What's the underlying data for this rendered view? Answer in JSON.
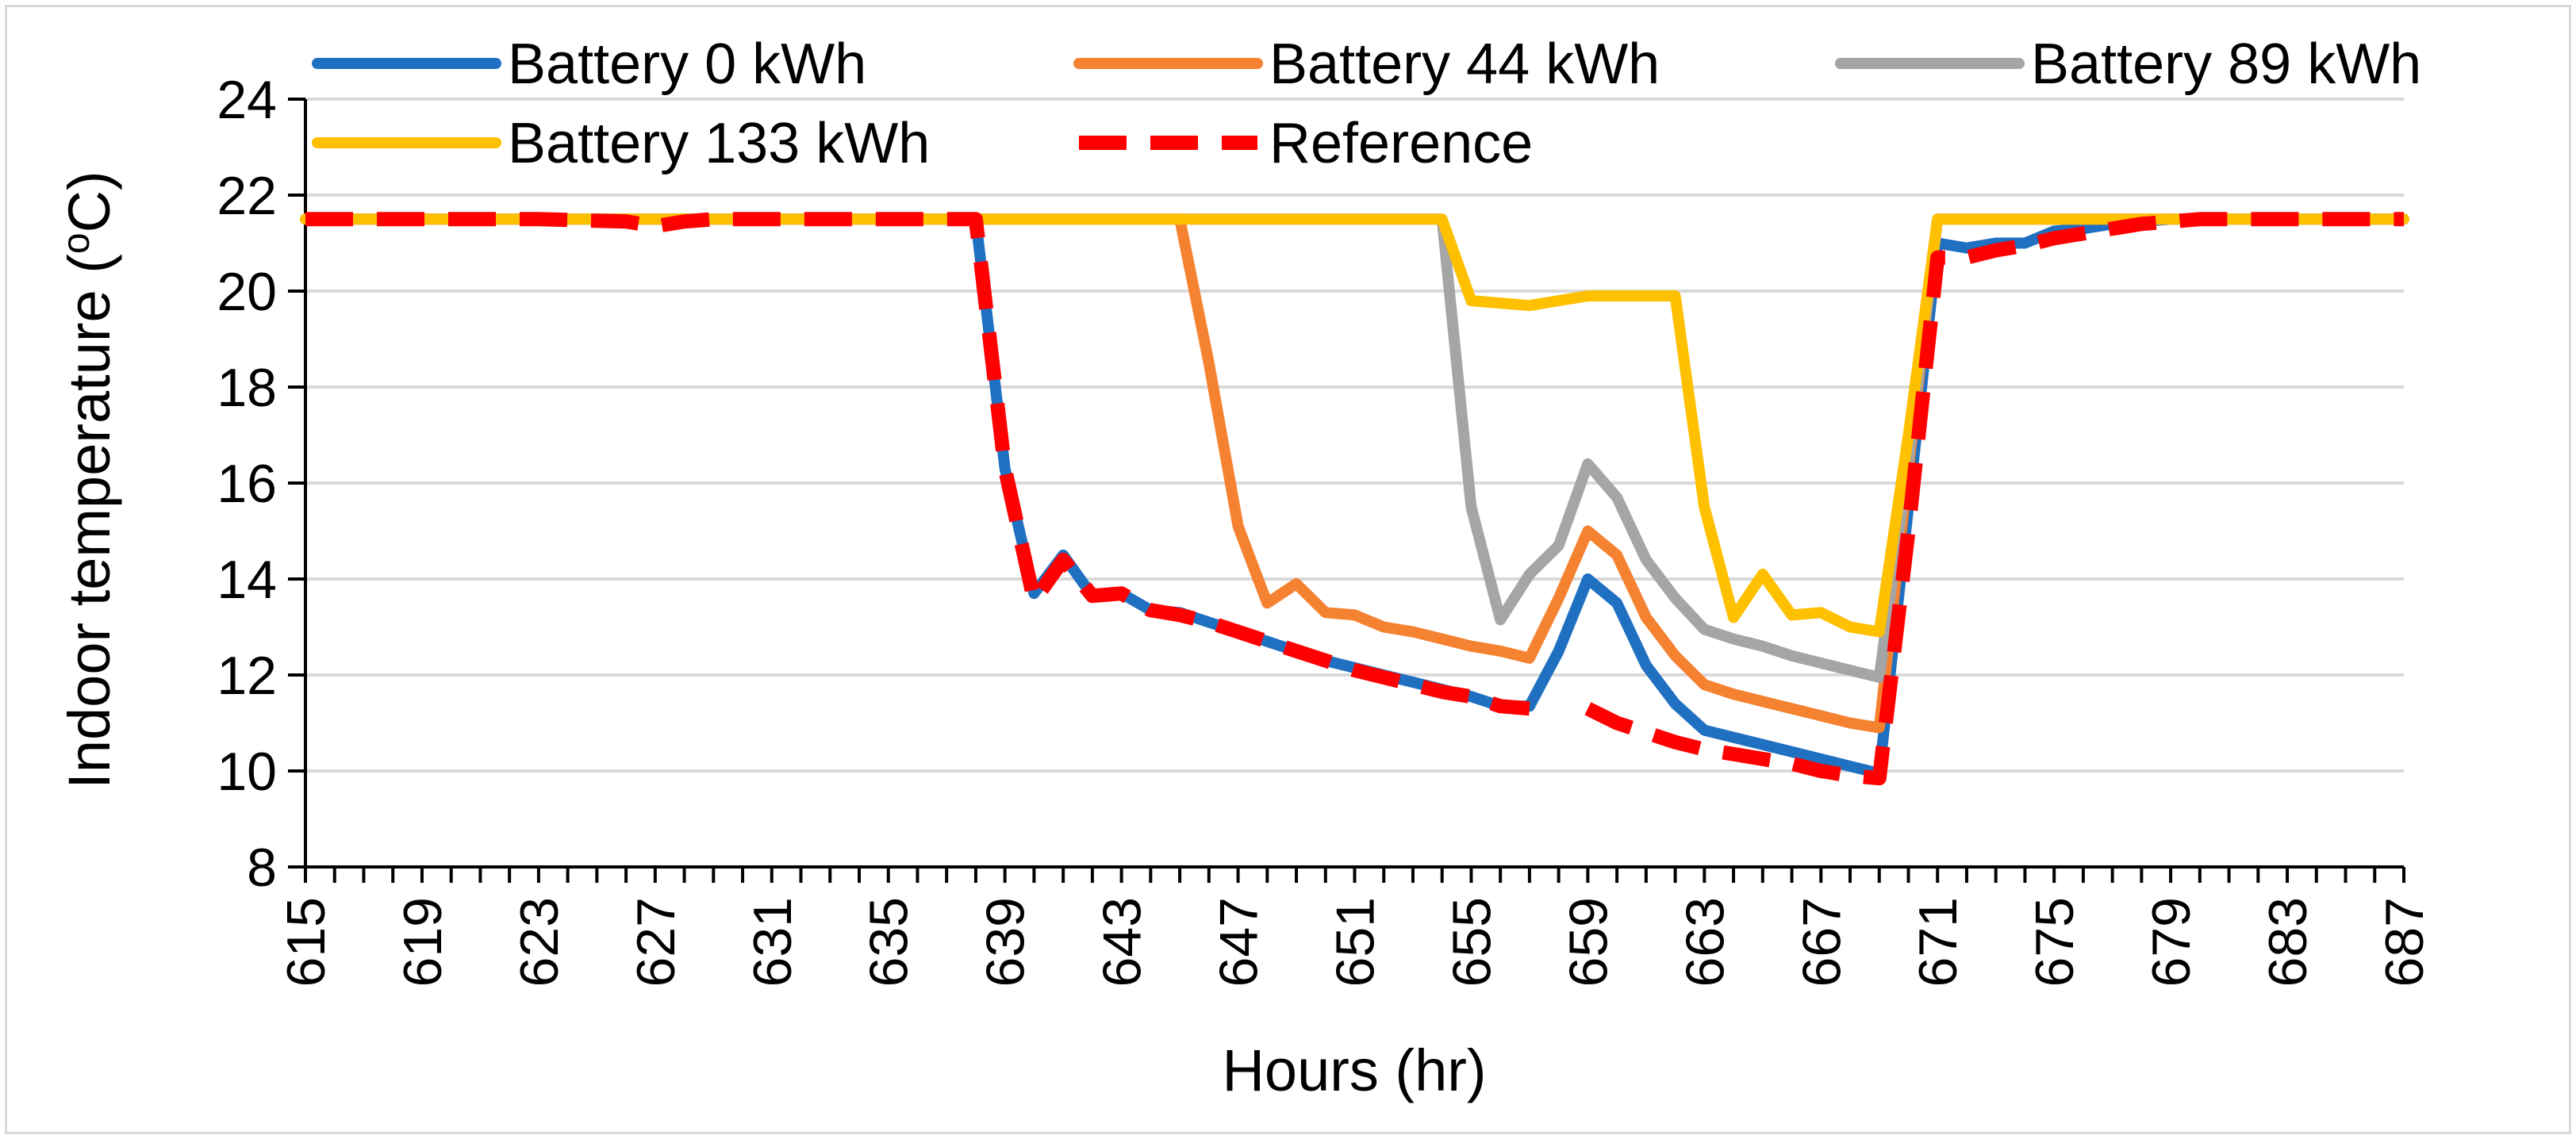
{
  "chart_data": {
    "type": "line",
    "title": "",
    "xlabel": "Hours (hr)",
    "ylabel_main": "Indoor temperature (",
    "ylabel_sup": "o",
    "ylabel_tail": "C)",
    "xlim": [
      615,
      687
    ],
    "ylim": [
      8,
      24
    ],
    "x_ticks": [
      "615",
      "619",
      "623",
      "627",
      "631",
      "635",
      "639",
      "643",
      "647",
      "651",
      "655",
      "659",
      "663",
      "667",
      "671",
      "675",
      "679",
      "683",
      "687"
    ],
    "y_ticks": [
      "8",
      "10",
      "12",
      "14",
      "16",
      "18",
      "20",
      "22",
      "24"
    ],
    "grid": "horizontal",
    "legend_position": "top",
    "series": [
      {
        "name": "Battery 0 kWh",
        "color": "#1f70c1",
        "dash": "solid",
        "points": [
          [
            615,
            21.5
          ],
          [
            620,
            21.5
          ],
          [
            625,
            21.5
          ],
          [
            630,
            21.5
          ],
          [
            635,
            21.5
          ],
          [
            638,
            21.5
          ],
          [
            639,
            16.3
          ],
          [
            640,
            13.7
          ],
          [
            641,
            14.5
          ],
          [
            642,
            13.65
          ],
          [
            643,
            13.7
          ],
          [
            644,
            13.35
          ],
          [
            645,
            13.3
          ],
          [
            646,
            13.1
          ],
          [
            647,
            12.9
          ],
          [
            648,
            12.7
          ],
          [
            649,
            12.5
          ],
          [
            650,
            12.3
          ],
          [
            651,
            12.15
          ],
          [
            652,
            12.0
          ],
          [
            653,
            11.85
          ],
          [
            654,
            11.7
          ],
          [
            655,
            11.55
          ],
          [
            656,
            11.35
          ],
          [
            657,
            11.35
          ],
          [
            658,
            12.5
          ],
          [
            659,
            14.0
          ],
          [
            660,
            13.5
          ],
          [
            661,
            12.2
          ],
          [
            662,
            11.4
          ],
          [
            663,
            10.85
          ],
          [
            664,
            10.7
          ],
          [
            665,
            10.55
          ],
          [
            666,
            10.4
          ],
          [
            667,
            10.25
          ],
          [
            668,
            10.1
          ],
          [
            669,
            9.95
          ],
          [
            670,
            15.5
          ],
          [
            671,
            21.0
          ],
          [
            672,
            20.9
          ],
          [
            673,
            21.0
          ],
          [
            674,
            21.0
          ],
          [
            675,
            21.25
          ],
          [
            676,
            21.3
          ],
          [
            677,
            21.4
          ],
          [
            678,
            21.45
          ],
          [
            679,
            21.5
          ],
          [
            683,
            21.5
          ],
          [
            687,
            21.5
          ]
        ]
      },
      {
        "name": "Battery 44 kWh",
        "color": "#f58230",
        "dash": "solid",
        "points": [
          [
            615,
            21.5
          ],
          [
            625,
            21.5
          ],
          [
            635,
            21.5
          ],
          [
            640,
            21.5
          ],
          [
            645,
            21.5
          ],
          [
            646,
            18.5
          ],
          [
            647,
            15.1
          ],
          [
            648,
            13.5
          ],
          [
            649,
            13.9
          ],
          [
            650,
            13.3
          ],
          [
            651,
            13.25
          ],
          [
            652,
            13.0
          ],
          [
            653,
            12.9
          ],
          [
            654,
            12.75
          ],
          [
            655,
            12.6
          ],
          [
            656,
            12.5
          ],
          [
            657,
            12.35
          ],
          [
            658,
            13.6
          ],
          [
            659,
            15.0
          ],
          [
            660,
            14.5
          ],
          [
            661,
            13.2
          ],
          [
            662,
            12.4
          ],
          [
            663,
            11.8
          ],
          [
            664,
            11.6
          ],
          [
            665,
            11.45
          ],
          [
            666,
            11.3
          ],
          [
            667,
            11.15
          ],
          [
            668,
            11.0
          ],
          [
            669,
            10.9
          ],
          [
            670,
            16.3
          ],
          [
            671,
            21.5
          ],
          [
            675,
            21.5
          ],
          [
            680,
            21.5
          ],
          [
            687,
            21.5
          ]
        ]
      },
      {
        "name": "Battery 89 kWh",
        "color": "#a5a5a5",
        "dash": "solid",
        "points": [
          [
            615,
            21.5
          ],
          [
            625,
            21.5
          ],
          [
            635,
            21.5
          ],
          [
            645,
            21.5
          ],
          [
            650,
            21.5
          ],
          [
            654,
            21.5
          ],
          [
            655,
            15.5
          ],
          [
            656,
            13.15
          ],
          [
            657,
            14.1
          ],
          [
            658,
            14.7
          ],
          [
            659,
            16.4
          ],
          [
            660,
            15.7
          ],
          [
            661,
            14.4
          ],
          [
            662,
            13.6
          ],
          [
            663,
            12.95
          ],
          [
            664,
            12.75
          ],
          [
            665,
            12.6
          ],
          [
            666,
            12.4
          ],
          [
            667,
            12.25
          ],
          [
            668,
            12.1
          ],
          [
            669,
            11.95
          ],
          [
            670,
            16.5
          ],
          [
            671,
            21.5
          ],
          [
            675,
            21.5
          ],
          [
            680,
            21.5
          ],
          [
            687,
            21.5
          ]
        ]
      },
      {
        "name": "Battery 133 kWh",
        "color": "#ffc000",
        "dash": "solid",
        "points": [
          [
            615,
            21.5
          ],
          [
            625,
            21.5
          ],
          [
            635,
            21.5
          ],
          [
            645,
            21.5
          ],
          [
            650,
            21.5
          ],
          [
            654,
            21.5
          ],
          [
            655,
            19.8
          ],
          [
            656,
            19.75
          ],
          [
            657,
            19.7
          ],
          [
            658,
            19.8
          ],
          [
            659,
            19.9
          ],
          [
            660,
            19.9
          ],
          [
            661,
            19.9
          ],
          [
            662,
            19.9
          ],
          [
            663,
            15.5
          ],
          [
            664,
            13.2
          ],
          [
            665,
            14.1
          ],
          [
            666,
            13.25
          ],
          [
            667,
            13.3
          ],
          [
            668,
            13.0
          ],
          [
            669,
            12.9
          ],
          [
            670,
            17.0
          ],
          [
            671,
            21.5
          ],
          [
            675,
            21.5
          ],
          [
            680,
            21.5
          ],
          [
            687,
            21.5
          ]
        ]
      },
      {
        "name": "Reference",
        "color": "#ff0000",
        "dash": "dashed",
        "segments": [
          [
            [
              615,
              21.5
            ],
            [
              623,
              21.5
            ],
            [
              626,
              21.45
            ],
            [
              627,
              21.35
            ],
            [
              628,
              21.45
            ],
            [
              629,
              21.5
            ],
            [
              635,
              21.5
            ],
            [
              638,
              21.5
            ],
            [
              639,
              16.3
            ],
            [
              640,
              13.55
            ],
            [
              641,
              14.4
            ],
            [
              642,
              13.65
            ],
            [
              643,
              13.7
            ],
            [
              644,
              13.35
            ],
            [
              645,
              13.25
            ],
            [
              646,
              13.1
            ],
            [
              647,
              12.9
            ],
            [
              648,
              12.7
            ],
            [
              649,
              12.5
            ],
            [
              650,
              12.3
            ],
            [
              651,
              12.1
            ],
            [
              652,
              11.95
            ],
            [
              653,
              11.8
            ],
            [
              654,
              11.65
            ],
            [
              655,
              11.55
            ],
            [
              656,
              11.35
            ],
            [
              657,
              11.3
            ]
          ],
          [
            [
              659,
              11.3
            ],
            [
              660,
              11.0
            ],
            [
              661,
              10.8
            ],
            [
              662,
              10.6
            ],
            [
              663,
              10.45
            ],
            [
              664,
              10.35
            ],
            [
              665,
              10.25
            ],
            [
              666,
              10.15
            ],
            [
              667,
              10.0
            ],
            [
              668,
              9.9
            ],
            [
              669,
              9.85
            ],
            [
              670,
              15.0
            ],
            [
              671,
              20.7
            ],
            [
              672,
              20.7
            ],
            [
              673,
              20.85
            ],
            [
              674,
              20.95
            ],
            [
              675,
              21.1
            ],
            [
              676,
              21.2
            ],
            [
              677,
              21.3
            ],
            [
              678,
              21.4
            ],
            [
              679,
              21.45
            ],
            [
              680,
              21.5
            ],
            [
              683,
              21.5
            ],
            [
              687,
              21.5
            ]
          ]
        ]
      }
    ]
  }
}
